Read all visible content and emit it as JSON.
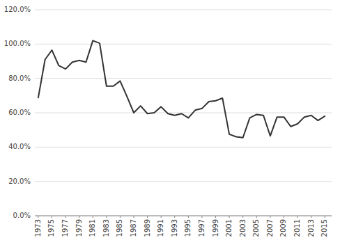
{
  "chart_data": {
    "type": "line",
    "x": [
      1973,
      1974,
      1975,
      1976,
      1977,
      1978,
      1979,
      1980,
      1981,
      1982,
      1983,
      1984,
      1985,
      1986,
      1987,
      1988,
      1989,
      1990,
      1991,
      1992,
      1993,
      1994,
      1995,
      1996,
      1997,
      1998,
      1999,
      2000,
      2001,
      2002,
      2003,
      2004,
      2005,
      2006,
      2007,
      2008,
      2009,
      2010,
      2011,
      2012,
      2013,
      2014,
      2015
    ],
    "values": [
      0.688,
      0.91,
      0.965,
      0.875,
      0.855,
      0.895,
      0.905,
      0.895,
      1.02,
      1.005,
      0.755,
      0.755,
      0.785,
      0.695,
      0.6,
      0.64,
      0.595,
      0.6,
      0.635,
      0.595,
      0.585,
      0.595,
      0.57,
      0.615,
      0.625,
      0.665,
      0.67,
      0.685,
      0.475,
      0.46,
      0.455,
      0.57,
      0.59,
      0.585,
      0.465,
      0.575,
      0.575,
      0.52,
      0.535,
      0.575,
      0.585,
      0.555,
      0.58
    ],
    "color": "#333333",
    "xlim": [
      1972.5,
      2016.0
    ],
    "xticks": [
      1973,
      1975,
      1977,
      1979,
      1981,
      1983,
      1985,
      1987,
      1989,
      1991,
      1993,
      1995,
      1997,
      1999,
      2001,
      2003,
      2005,
      2007,
      2009,
      2011,
      2013,
      2015
    ],
    "ylim": [
      0.0,
      1.2
    ],
    "yticks": [
      {
        "value": 0.0,
        "label": "0.0%"
      },
      {
        "value": 0.2,
        "label": "20.0%"
      },
      {
        "value": 0.4,
        "label": "40.0%"
      },
      {
        "value": 0.6,
        "label": "60.0%"
      },
      {
        "value": 0.8,
        "label": "80.0%"
      },
      {
        "value": 1.0,
        "label": "100.0%"
      },
      {
        "value": 1.2,
        "label": "120.0%"
      }
    ],
    "grid": true
  }
}
